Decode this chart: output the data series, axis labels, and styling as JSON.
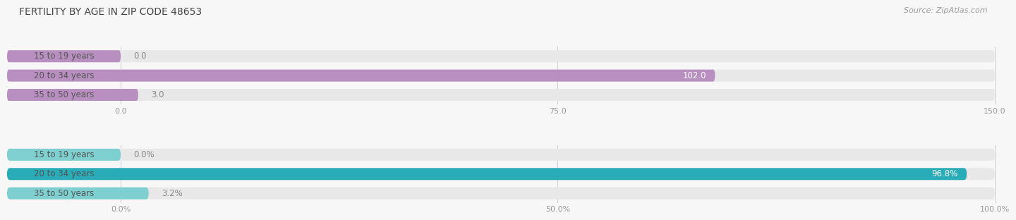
{
  "title": "FERTILITY BY AGE IN ZIP CODE 48653",
  "source": "Source: ZipAtlas.com",
  "top_chart": {
    "categories": [
      "15 to 19 years",
      "20 to 34 years",
      "35 to 50 years"
    ],
    "values": [
      0.0,
      102.0,
      3.0
    ],
    "bar_color": "#b88fc0",
    "bar_bg_color": "#e8e8e8",
    "xlim": [
      0,
      150
    ],
    "xticks": [
      0.0,
      75.0,
      150.0
    ]
  },
  "bottom_chart": {
    "categories": [
      "15 to 19 years",
      "20 to 34 years",
      "35 to 50 years"
    ],
    "values": [
      0.0,
      96.8,
      3.2
    ],
    "bar_color_main": "#2aacb8",
    "bar_color_light": "#7ecfcf",
    "bar_bg_color": "#e8e8e8",
    "xlim": [
      0,
      100
    ],
    "xticks": [
      0.0,
      50.0,
      100.0
    ]
  },
  "background_color": "#f7f7f7",
  "title_fontsize": 10,
  "source_fontsize": 8,
  "label_fontsize": 8.5,
  "tick_fontsize": 8,
  "category_fontsize": 8.5,
  "bar_height": 0.62
}
